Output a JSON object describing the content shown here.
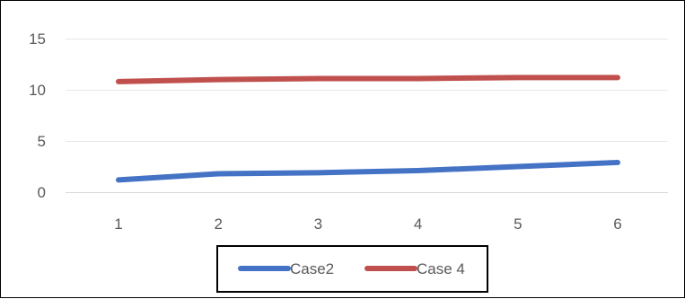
{
  "chart_data": {
    "type": "line",
    "title": "",
    "xlabel": "",
    "ylabel": "",
    "x": [
      1,
      2,
      3,
      4,
      5,
      6
    ],
    "x_tick_labels": [
      "1",
      "2",
      "3",
      "4",
      "5",
      "6"
    ],
    "ylim": [
      0,
      15
    ],
    "y_ticks": [
      0,
      5,
      10,
      15
    ],
    "y_tick_labels": [
      "0",
      "5",
      "10",
      "15"
    ],
    "grid": "horizontal",
    "legend_position": "bottom",
    "series": [
      {
        "name": "Case2",
        "color": "#4472C4",
        "values": [
          1.2,
          1.8,
          1.9,
          2.1,
          2.5,
          2.9
        ]
      },
      {
        "name": "Case 4",
        "color": "#C0504D",
        "values": [
          10.8,
          11.0,
          11.1,
          11.1,
          11.2,
          11.2
        ]
      }
    ]
  }
}
